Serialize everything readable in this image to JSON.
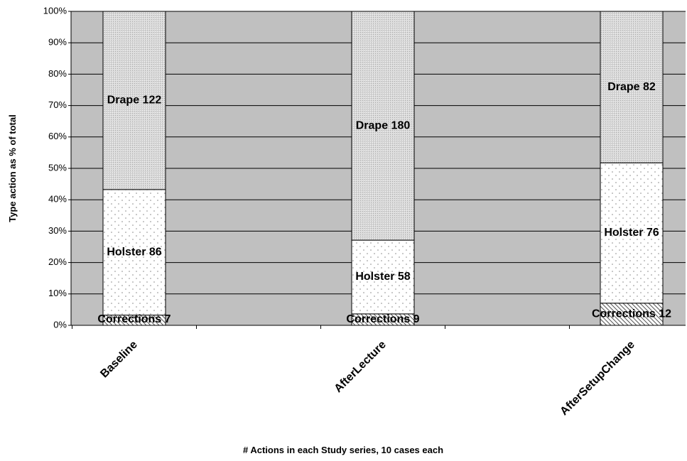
{
  "chart_data": {
    "type": "bar",
    "stacking": "percent",
    "x_label": "# Actions in each Study series, 10 cases each",
    "y_label": "Type action as % of total",
    "categories": [
      "Baseline",
      "AfterLecture",
      "AfterSetupChange"
    ],
    "series": [
      {
        "name": "Corrections",
        "color": "#ffffff",
        "values": [
          7,
          9,
          12
        ],
        "value_labels": [
          "Corrections 7",
          "Corrections 9",
          "Corrections 12"
        ]
      },
      {
        "name": "Holster",
        "color": "#ffffff",
        "values": [
          86,
          58,
          76
        ],
        "value_labels": [
          "Holster 86",
          "Holster 58",
          "Holster 76"
        ]
      },
      {
        "name": "Drape",
        "color": "#d9d9d9",
        "values": [
          122,
          180,
          82
        ],
        "value_labels": [
          "Drape 122",
          "Drape 180",
          "Drape 82"
        ]
      }
    ],
    "ylim": [
      0,
      100
    ],
    "yticks": [
      {
        "value": 0,
        "label": "0%"
      },
      {
        "value": 10,
        "label": "10%"
      },
      {
        "value": 20,
        "label": "20%"
      },
      {
        "value": 30,
        "label": "30%"
      },
      {
        "value": 40,
        "label": "40%"
      },
      {
        "value": 50,
        "label": "50%"
      },
      {
        "value": 60,
        "label": "60%"
      },
      {
        "value": 70,
        "label": "70%"
      },
      {
        "value": 80,
        "label": "80%"
      },
      {
        "value": 90,
        "label": "90%"
      },
      {
        "value": 100,
        "label": "100%"
      }
    ],
    "grid": true,
    "plot_background": "#c0c0c0"
  }
}
